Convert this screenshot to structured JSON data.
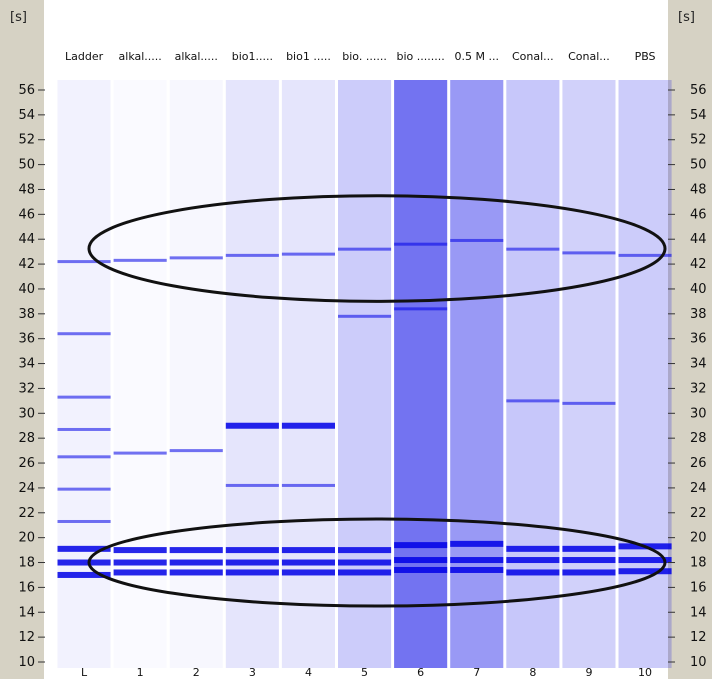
{
  "axis_unit": "[s]",
  "chart_data": {
    "type": "heatmap",
    "title": "",
    "ylabel": "[s]",
    "ylim": [
      10,
      57
    ],
    "yticks": [
      56,
      54,
      52,
      50,
      48,
      46,
      44,
      42,
      40,
      38,
      36,
      34,
      32,
      30,
      28,
      26,
      24,
      22,
      20,
      18,
      16,
      14,
      12,
      10
    ],
    "lanes": [
      {
        "number": "L",
        "name": "Ladder",
        "bands": [
          42.2,
          36.4,
          31.3,
          28.7,
          26.5,
          23.9,
          21.3,
          19.1,
          18.0,
          17.0
        ]
      },
      {
        "number": "1",
        "name": "alkal.....",
        "bands": [
          42.3,
          26.8,
          19.0,
          18.0,
          17.2
        ]
      },
      {
        "number": "2",
        "name": "alkal.....",
        "bands": [
          42.5,
          27.0,
          19.0,
          18.0,
          17.2
        ]
      },
      {
        "number": "3",
        "name": "bio1.....",
        "bands": [
          42.7,
          29.0,
          24.2,
          19.0,
          18.0,
          17.2
        ]
      },
      {
        "number": "4",
        "name": "bio1 .....",
        "bands": [
          42.8,
          29.0,
          24.2,
          19.0,
          18.0,
          17.2
        ]
      },
      {
        "number": "5",
        "name": "bio. ......",
        "bands": [
          43.2,
          37.8,
          19.0,
          18.0,
          17.2
        ]
      },
      {
        "number": "6",
        "name": "bio ........",
        "bands": [
          43.6,
          38.4,
          19.4,
          18.2,
          17.4
        ]
      },
      {
        "number": "7",
        "name": "0.5 M ...",
        "bands": [
          43.9,
          19.5,
          18.2,
          17.4
        ]
      },
      {
        "number": "8",
        "name": "Conal...",
        "bands": [
          43.2,
          31.0,
          19.1,
          18.2,
          17.2
        ]
      },
      {
        "number": "9",
        "name": "Conal...",
        "bands": [
          42.9,
          30.8,
          19.1,
          18.2,
          17.2
        ]
      },
      {
        "number": "10",
        "name": "PBS",
        "bands": [
          42.7,
          19.3,
          18.2,
          17.3
        ]
      }
    ],
    "annotations": [
      {
        "shape": "ellipse",
        "y_range": [
          39,
          47.5
        ]
      },
      {
        "shape": "ellipse",
        "y_range": [
          14.5,
          21.5
        ]
      }
    ]
  },
  "colors": {
    "band": "#0000e6",
    "strip": "#d6d2c4",
    "ellipse": "#111111"
  }
}
